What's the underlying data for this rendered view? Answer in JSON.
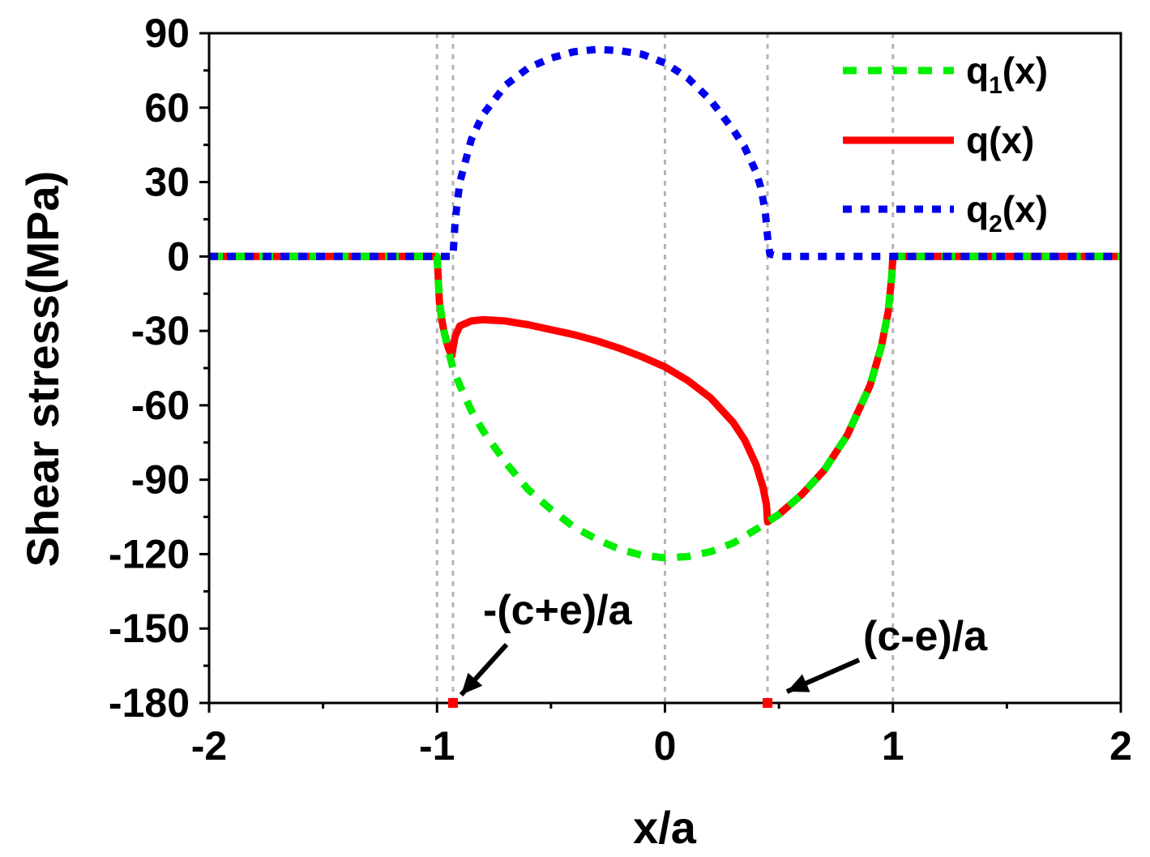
{
  "chart_data": {
    "type": "line",
    "title": "",
    "xlabel": "x/a",
    "ylabel": "Shear stress(MPa)",
    "xlim": [
      -2,
      2
    ],
    "ylim": [
      -180,
      90
    ],
    "xticks": [
      "-2",
      "-1",
      "0",
      "1",
      "2"
    ],
    "yticks": [
      "90",
      "60",
      "30",
      "0",
      "-30",
      "-60",
      "-90",
      "-120",
      "-150",
      "-180"
    ],
    "vlines": [
      -1,
      -0.93,
      0,
      0.45,
      1
    ],
    "legend_position": "top-right",
    "series": [
      {
        "name": "q1(x)",
        "legend_main": "q",
        "legend_sub": "1",
        "legend_tail": "(x)",
        "color": "#00ee00",
        "style": "dashed",
        "points": [
          [
            -2,
            0
          ],
          [
            -1,
            0
          ],
          [
            -0.99,
            -18
          ],
          [
            -0.97,
            -30
          ],
          [
            -0.95,
            -38
          ],
          [
            -0.93,
            -45
          ],
          [
            -0.9,
            -52
          ],
          [
            -0.85,
            -62
          ],
          [
            -0.8,
            -70
          ],
          [
            -0.7,
            -83
          ],
          [
            -0.6,
            -94
          ],
          [
            -0.5,
            -102
          ],
          [
            -0.4,
            -109
          ],
          [
            -0.3,
            -114
          ],
          [
            -0.2,
            -118
          ],
          [
            -0.1,
            -120.5
          ],
          [
            0,
            -121.5
          ],
          [
            0.1,
            -121
          ],
          [
            0.2,
            -119
          ],
          [
            0.3,
            -115.5
          ],
          [
            0.4,
            -110
          ],
          [
            0.45,
            -107
          ],
          [
            0.5,
            -104
          ],
          [
            0.6,
            -96
          ],
          [
            0.7,
            -86
          ],
          [
            0.8,
            -72
          ],
          [
            0.9,
            -52
          ],
          [
            0.95,
            -36
          ],
          [
            0.98,
            -22
          ],
          [
            0.995,
            -8
          ],
          [
            1,
            0
          ],
          [
            2,
            0
          ]
        ]
      },
      {
        "name": "q(x)",
        "legend_main": "q(x)",
        "legend_sub": "",
        "legend_tail": "",
        "color": "#ff0000",
        "style": "solid",
        "points": [
          [
            -2,
            0
          ],
          [
            -1,
            0
          ],
          [
            -0.995,
            -8
          ],
          [
            -0.99,
            -18
          ],
          [
            -0.98,
            -25
          ],
          [
            -0.97,
            -30
          ],
          [
            -0.95,
            -37
          ],
          [
            -0.935,
            -40
          ],
          [
            -0.93,
            -37
          ],
          [
            -0.92,
            -32
          ],
          [
            -0.9,
            -28
          ],
          [
            -0.85,
            -26
          ],
          [
            -0.8,
            -25.5
          ],
          [
            -0.7,
            -26
          ],
          [
            -0.6,
            -27.5
          ],
          [
            -0.5,
            -29.5
          ],
          [
            -0.4,
            -31.5
          ],
          [
            -0.3,
            -34
          ],
          [
            -0.2,
            -37
          ],
          [
            -0.1,
            -40.5
          ],
          [
            0,
            -44.5
          ],
          [
            0.1,
            -50
          ],
          [
            0.2,
            -57
          ],
          [
            0.3,
            -67
          ],
          [
            0.35,
            -74
          ],
          [
            0.4,
            -84
          ],
          [
            0.43,
            -93
          ],
          [
            0.445,
            -100
          ],
          [
            0.45,
            -107
          ],
          [
            0.5,
            -104
          ],
          [
            0.6,
            -96
          ],
          [
            0.7,
            -86
          ],
          [
            0.8,
            -72
          ],
          [
            0.9,
            -52
          ],
          [
            0.95,
            -36
          ],
          [
            0.98,
            -22
          ],
          [
            0.995,
            -8
          ],
          [
            1,
            0
          ],
          [
            2,
            0
          ]
        ]
      },
      {
        "name": "q2(x)",
        "legend_main": "q",
        "legend_sub": "2",
        "legend_tail": "(x)",
        "color": "#0000ee",
        "style": "dotted",
        "points": [
          [
            -2,
            0
          ],
          [
            -0.93,
            0
          ],
          [
            -0.92,
            15
          ],
          [
            -0.9,
            30
          ],
          [
            -0.85,
            47
          ],
          [
            -0.8,
            57
          ],
          [
            -0.7,
            69
          ],
          [
            -0.6,
            76
          ],
          [
            -0.5,
            80
          ],
          [
            -0.4,
            82.5
          ],
          [
            -0.3,
            83.5
          ],
          [
            -0.2,
            83
          ],
          [
            -0.1,
            81.5
          ],
          [
            0,
            78
          ],
          [
            0.1,
            72
          ],
          [
            0.2,
            63
          ],
          [
            0.3,
            51
          ],
          [
            0.35,
            44
          ],
          [
            0.4,
            34
          ],
          [
            0.42,
            28
          ],
          [
            0.44,
            18
          ],
          [
            0.45,
            8
          ],
          [
            0.46,
            1
          ],
          [
            0.5,
            0
          ],
          [
            2,
            0
          ]
        ]
      }
    ],
    "markers": [
      {
        "label": "-(c+e)/a",
        "x": -0.93,
        "y": -180,
        "color": "#ff0000"
      },
      {
        "label": "(c-e)/a",
        "x": 0.45,
        "y": -180,
        "color": "#ff0000"
      }
    ]
  }
}
